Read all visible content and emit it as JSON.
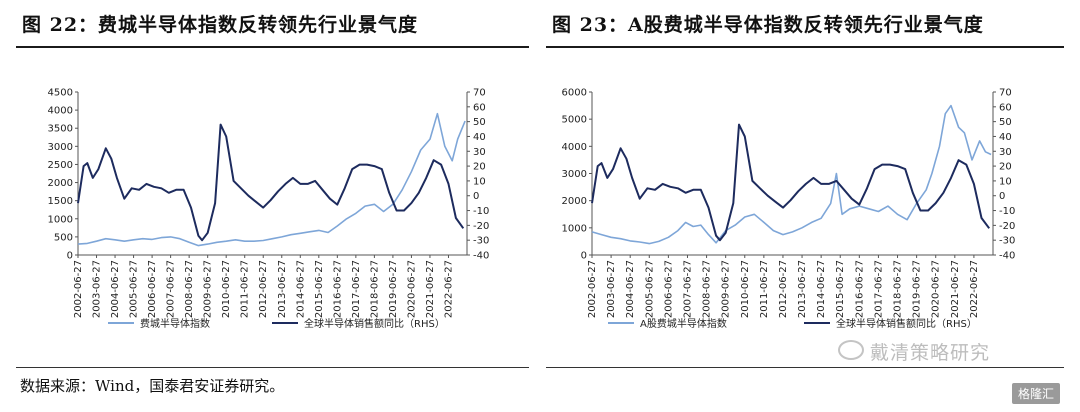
{
  "figures": {
    "left_title": "图 22：费城半导体指数反转领先行业景气度",
    "right_title": "图 23：A股费城半导体指数反转领先行业景气度"
  },
  "source_note": "数据来源：Wind，国泰君安证券研究。",
  "watermark": "戴清策略研究",
  "badge": "格隆汇",
  "chart_data": [
    {
      "type": "line",
      "x_ticks": [
        "2002-06-27",
        "2003-06-27",
        "2004-06-27",
        "2005-06-27",
        "2006-06-27",
        "2007-06-27",
        "2008-06-27",
        "2009-06-27",
        "2010-06-27",
        "2011-06-27",
        "2012-06-27",
        "2013-06-27",
        "2014-06-27",
        "2015-06-27",
        "2016-06-27",
        "2017-06-27",
        "2018-06-27",
        "2019-06-27",
        "2020-06-27",
        "2021-06-27",
        "2022-06-27"
      ],
      "y_left_ticks": [
        "0",
        "500",
        "1000",
        "1500",
        "2000",
        "2500",
        "3000",
        "3500",
        "4000",
        "4500"
      ],
      "y_right_ticks": [
        "-40",
        "-30",
        "-20",
        "-10",
        "0",
        "10",
        "20",
        "30",
        "40",
        "50",
        "60",
        "70"
      ],
      "ylim_left": [
        0,
        4500
      ],
      "ylim_right": [
        -40,
        70
      ],
      "series": [
        {
          "name": "费城半导体指数",
          "axis": "left",
          "color": "#7ea6d8",
          "x": [
            2002.5,
            2003.0,
            2003.5,
            2004.0,
            2004.5,
            2005.0,
            2005.5,
            2006.0,
            2006.5,
            2007.0,
            2007.5,
            2008.0,
            2008.5,
            2009.0,
            2009.5,
            2010.0,
            2010.5,
            2011.0,
            2011.5,
            2012.0,
            2012.5,
            2013.0,
            2013.5,
            2014.0,
            2014.5,
            2015.0,
            2015.5,
            2016.0,
            2016.5,
            2017.0,
            2017.5,
            2018.0,
            2018.5,
            2019.0,
            2019.5,
            2020.0,
            2020.5,
            2021.0,
            2021.5,
            2021.9,
            2022.3,
            2022.7,
            2023.0,
            2023.4
          ],
          "values": [
            300,
            320,
            380,
            450,
            420,
            380,
            420,
            450,
            430,
            480,
            500,
            450,
            350,
            260,
            300,
            350,
            380,
            420,
            380,
            380,
            400,
            450,
            500,
            560,
            600,
            640,
            680,
            620,
            800,
            1000,
            1150,
            1350,
            1400,
            1200,
            1400,
            1800,
            2300,
            2900,
            3200,
            3900,
            3000,
            2600,
            3200,
            3700
          ]
        },
        {
          "name": "全球半导体销售额同比（RHS）",
          "axis": "right",
          "color": "#1d2b5e",
          "x": [
            2002.5,
            2002.8,
            2003.0,
            2003.3,
            2003.6,
            2004.0,
            2004.3,
            2004.6,
            2005.0,
            2005.4,
            2005.8,
            2006.2,
            2006.6,
            2007.0,
            2007.4,
            2007.8,
            2008.2,
            2008.6,
            2009.0,
            2009.2,
            2009.5,
            2009.9,
            2010.2,
            2010.5,
            2010.9,
            2011.3,
            2011.7,
            2012.1,
            2012.5,
            2012.9,
            2013.3,
            2013.7,
            2014.1,
            2014.5,
            2014.9,
            2015.3,
            2015.7,
            2016.1,
            2016.5,
            2016.9,
            2017.3,
            2017.7,
            2018.1,
            2018.5,
            2018.9,
            2019.3,
            2019.7,
            2020.1,
            2020.5,
            2020.9,
            2021.3,
            2021.7,
            2022.1,
            2022.5,
            2022.9,
            2023.3
          ],
          "values": [
            -5,
            20,
            22,
            12,
            18,
            32,
            25,
            12,
            -2,
            5,
            4,
            8,
            6,
            5,
            2,
            4,
            4,
            -8,
            -27,
            -30,
            -25,
            -5,
            48,
            40,
            10,
            5,
            0,
            -4,
            -8,
            -3,
            3,
            8,
            12,
            8,
            8,
            10,
            4,
            -2,
            -6,
            5,
            18,
            21,
            21,
            20,
            18,
            2,
            -10,
            -10,
            -5,
            2,
            12,
            24,
            21,
            8,
            -15,
            -22
          ]
        }
      ]
    },
    {
      "type": "line",
      "x_ticks": [
        "2002-06-27",
        "2003-06-27",
        "2004-06-27",
        "2005-06-27",
        "2006-06-27",
        "2007-06-27",
        "2008-06-27",
        "2009-06-27",
        "2010-06-27",
        "2011-06-27",
        "2012-06-27",
        "2013-06-27",
        "2014-06-27",
        "2015-06-27",
        "2016-06-27",
        "2017-06-27",
        "2018-06-27",
        "2019-06-27",
        "2020-06-27",
        "2021-06-27",
        "2022-06-27"
      ],
      "y_left_ticks": [
        "0",
        "1000",
        "2000",
        "3000",
        "4000",
        "5000",
        "6000"
      ],
      "y_right_ticks": [
        "-40",
        "-30",
        "-20",
        "-10",
        "0",
        "10",
        "20",
        "30",
        "40",
        "50",
        "60",
        "70"
      ],
      "ylim_left": [
        0,
        6000
      ],
      "ylim_right": [
        -40,
        70
      ],
      "series": [
        {
          "name": "A股费城半导体指数",
          "axis": "left",
          "color": "#7ea6d8",
          "x": [
            2002.5,
            2003.0,
            2003.5,
            2004.0,
            2004.5,
            2005.0,
            2005.5,
            2006.0,
            2006.5,
            2007.0,
            2007.4,
            2007.8,
            2008.2,
            2008.6,
            2009.0,
            2009.5,
            2010.0,
            2010.5,
            2011.0,
            2011.5,
            2012.0,
            2012.5,
            2013.0,
            2013.5,
            2014.0,
            2014.5,
            2015.0,
            2015.3,
            2015.6,
            2016.0,
            2016.5,
            2017.0,
            2017.5,
            2018.0,
            2018.5,
            2019.0,
            2019.5,
            2020.0,
            2020.3,
            2020.7,
            2021.0,
            2021.3,
            2021.7,
            2022.0,
            2022.4,
            2022.8,
            2023.1,
            2023.4
          ],
          "values": [
            850,
            750,
            650,
            600,
            520,
            480,
            420,
            500,
            650,
            900,
            1200,
            1050,
            1100,
            750,
            450,
            900,
            1100,
            1400,
            1500,
            1200,
            900,
            750,
            850,
            1000,
            1200,
            1350,
            1900,
            3000,
            1500,
            1700,
            1800,
            1700,
            1600,
            1800,
            1500,
            1300,
            1900,
            2400,
            3000,
            4000,
            5200,
            5500,
            4700,
            4500,
            3500,
            4200,
            3800,
            3700
          ]
        },
        {
          "name": "全球半导体销售额同比（RHS）",
          "axis": "right",
          "color": "#1d2b5e",
          "x": [
            2002.5,
            2002.8,
            2003.0,
            2003.3,
            2003.6,
            2004.0,
            2004.3,
            2004.6,
            2005.0,
            2005.4,
            2005.8,
            2006.2,
            2006.6,
            2007.0,
            2007.4,
            2007.8,
            2008.2,
            2008.6,
            2009.0,
            2009.2,
            2009.5,
            2009.9,
            2010.2,
            2010.5,
            2010.9,
            2011.3,
            2011.7,
            2012.1,
            2012.5,
            2012.9,
            2013.3,
            2013.7,
            2014.1,
            2014.5,
            2014.9,
            2015.3,
            2015.7,
            2016.1,
            2016.5,
            2016.9,
            2017.3,
            2017.7,
            2018.1,
            2018.5,
            2018.9,
            2019.3,
            2019.7,
            2020.1,
            2020.5,
            2020.9,
            2021.3,
            2021.7,
            2022.1,
            2022.5,
            2022.9,
            2023.3
          ],
          "values": [
            -5,
            20,
            22,
            12,
            18,
            32,
            25,
            12,
            -2,
            5,
            4,
            8,
            6,
            5,
            2,
            4,
            4,
            -8,
            -27,
            -30,
            -25,
            -5,
            48,
            40,
            10,
            5,
            0,
            -4,
            -8,
            -3,
            3,
            8,
            12,
            8,
            8,
            10,
            4,
            -2,
            -6,
            5,
            18,
            21,
            21,
            20,
            18,
            2,
            -10,
            -10,
            -5,
            2,
            12,
            24,
            21,
            8,
            -15,
            -22
          ]
        }
      ]
    }
  ]
}
